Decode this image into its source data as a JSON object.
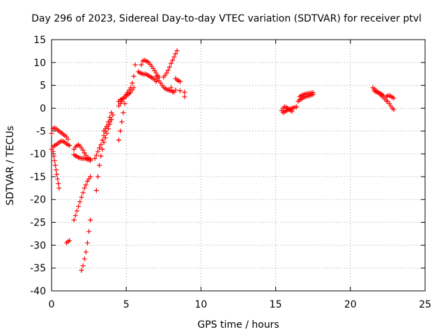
{
  "chart_data": {
    "type": "scatter",
    "title": "Day 296 of 2023, Sidereal Day-to-day VTEC variation (SDTVAR) for receiver ptvl",
    "xlabel": "GPS time / hours",
    "ylabel": "SDTVAR / TECUs",
    "xlim": [
      0,
      25
    ],
    "ylim": [
      -40,
      15
    ],
    "xticks": [
      "0",
      "5",
      "10",
      "15",
      "20",
      "25"
    ],
    "yticks": [
      "15",
      "10",
      "5",
      "0",
      "-5",
      "-10",
      "-15",
      "-20",
      "-25",
      "-30",
      "-35",
      "-40"
    ],
    "grid": true,
    "marker": "+",
    "color": "#ff0000",
    "series": [
      {
        "x": [
          0.0,
          0.1,
          0.2,
          0.3,
          0.4,
          0.5,
          0.6,
          0.7,
          0.8,
          0.9,
          1.0,
          1.1
        ],
        "y": [
          -5.5,
          -4.5,
          -4.3,
          -4.5,
          -4.8,
          -5.0,
          -5.3,
          -5.5,
          -5.8,
          -6.0,
          -6.3,
          -6.8
        ]
      },
      {
        "x": [
          0.0,
          0.1,
          0.15,
          0.2,
          0.25,
          0.3,
          0.35,
          0.4,
          0.45,
          0.5
        ],
        "y": [
          -9.0,
          -9.5,
          -10.5,
          -11.5,
          -12.5,
          -13.5,
          -14.5,
          -15.5,
          -16.5,
          -17.5
        ]
      },
      {
        "x": [
          0.1,
          0.2,
          0.3,
          0.4,
          0.5,
          0.6,
          0.7,
          0.8,
          0.9,
          1.0,
          1.1,
          1.2
        ],
        "y": [
          -8.5,
          -8.2,
          -8.0,
          -7.8,
          -7.5,
          -7.3,
          -7.2,
          -7.3,
          -7.5,
          -7.8,
          -8.0,
          -8.2
        ]
      },
      {
        "x": [
          1.0,
          1.1,
          1.2
        ],
        "y": [
          -29.5,
          -29.2,
          -29.0
        ]
      },
      {
        "x": [
          1.5,
          1.6,
          1.7,
          1.8,
          1.9,
          2.0,
          2.1,
          2.2,
          2.3,
          2.4,
          2.5,
          2.6
        ],
        "y": [
          -9.0,
          -8.5,
          -8.2,
          -8.0,
          -8.3,
          -8.7,
          -9.2,
          -9.8,
          -10.3,
          -10.8,
          -11.0,
          -11.2
        ]
      },
      {
        "x": [
          1.5,
          1.6,
          1.7,
          1.8,
          1.9,
          2.0,
          2.1,
          2.2,
          2.3,
          2.4,
          2.5,
          2.6
        ],
        "y": [
          -10.2,
          -10.4,
          -10.6,
          -10.8,
          -10.9,
          -11.0,
          -11.0,
          -11.0,
          -11.1,
          -11.2,
          -11.3,
          -11.5
        ]
      },
      {
        "x": [
          1.5,
          1.6,
          1.7,
          1.8,
          1.9,
          2.0,
          2.1,
          2.2,
          2.3,
          2.4,
          2.5,
          2.6
        ],
        "y": [
          -24.5,
          -23.5,
          -22.5,
          -21.5,
          -20.5,
          -19.5,
          -18.5,
          -17.5,
          -16.8,
          -16.0,
          -15.5,
          -15.0
        ]
      },
      {
        "x": [
          2.0,
          2.1,
          2.2,
          2.3,
          2.4,
          2.5,
          2.6
        ],
        "y": [
          -35.5,
          -34.5,
          -33.0,
          -31.5,
          -29.5,
          -27.0,
          -24.5
        ]
      },
      {
        "x": [
          2.9,
          3.0,
          3.1,
          3.2,
          3.3,
          3.4,
          3.5,
          3.6,
          3.7,
          3.8,
          3.9,
          4.0
        ],
        "y": [
          -11.0,
          -10.3,
          -9.5,
          -8.7,
          -8.0,
          -7.0,
          -6.0,
          -5.0,
          -4.0,
          -3.0,
          -2.0,
          -1.0
        ]
      },
      {
        "x": [
          3.0,
          3.1,
          3.2,
          3.3,
          3.4,
          3.5,
          3.6,
          3.7,
          3.8,
          3.9,
          4.0,
          4.1
        ],
        "y": [
          -18.0,
          -15.0,
          -12.5,
          -10.5,
          -9.0,
          -7.5,
          -6.5,
          -5.5,
          -4.5,
          -3.5,
          -2.5,
          -1.5
        ]
      },
      {
        "x": [
          3.5,
          3.6,
          3.7,
          3.8,
          3.9,
          4.0
        ],
        "y": [
          -5.0,
          -4.5,
          -4.0,
          -3.5,
          -3.0,
          -2.5
        ]
      },
      {
        "x": [
          4.5,
          4.6,
          4.7,
          4.8,
          4.9,
          5.0
        ],
        "y": [
          -7.0,
          -5.0,
          -3.0,
          -1.0,
          1.0,
          2.5
        ]
      },
      {
        "x": [
          4.5,
          4.6,
          4.7,
          4.8,
          4.9,
          5.0,
          5.1,
          5.2,
          5.3,
          5.4,
          5.5,
          5.6
        ],
        "y": [
          0.5,
          1.0,
          1.5,
          2.0,
          2.5,
          3.0,
          3.5,
          4.0,
          4.5,
          5.5,
          7.0,
          9.5
        ]
      },
      {
        "x": [
          4.5,
          4.6,
          4.7,
          4.8,
          4.9,
          5.0,
          5.1,
          5.2,
          5.3,
          5.4,
          5.5
        ],
        "y": [
          1.5,
          1.8,
          2.0,
          2.2,
          2.5,
          2.8,
          3.0,
          3.2,
          3.5,
          4.0,
          4.5
        ]
      },
      {
        "x": [
          6.0,
          6.1,
          6.2,
          6.3,
          6.4,
          6.5,
          6.6,
          6.7,
          6.8,
          6.9,
          7.0,
          7.1,
          7.2
        ],
        "y": [
          9.5,
          10.3,
          10.5,
          10.4,
          10.2,
          10.0,
          9.6,
          9.2,
          8.7,
          8.2,
          7.7,
          7.2,
          6.8
        ]
      },
      {
        "x": [
          5.8,
          5.9,
          6.0,
          6.1,
          6.2,
          6.3,
          6.4,
          6.5,
          6.6,
          6.7,
          6.8,
          6.9,
          7.0
        ],
        "y": [
          8.0,
          7.8,
          7.6,
          7.5,
          7.4,
          7.5,
          7.3,
          7.1,
          6.9,
          6.7,
          6.5,
          6.2,
          5.8
        ]
      },
      {
        "x": [
          7.0,
          7.1,
          7.2,
          7.3,
          7.4,
          7.5,
          7.6,
          7.7,
          7.8,
          7.9,
          8.0,
          8.1,
          8.2
        ],
        "y": [
          7.0,
          6.5,
          6.0,
          5.5,
          5.0,
          4.6,
          4.3,
          4.1,
          4.0,
          3.9,
          3.8,
          3.6,
          3.5
        ]
      },
      {
        "x": [
          7.5,
          7.6,
          7.7,
          7.8,
          7.9,
          8.0,
          8.1,
          8.2,
          8.3,
          8.4
        ],
        "y": [
          6.8,
          7.2,
          7.7,
          8.3,
          9.0,
          9.8,
          10.5,
          11.2,
          11.9,
          12.6
        ]
      },
      {
        "x": [
          8.3,
          8.4,
          8.5,
          8.6
        ],
        "y": [
          6.5,
          6.2,
          6.0,
          5.8
        ]
      },
      {
        "x": [
          8.0,
          8.3,
          8.6,
          8.9,
          8.9
        ],
        "y": [
          4.5,
          4.0,
          3.8,
          3.5,
          2.5
        ]
      },
      {
        "x": [
          15.4,
          15.5,
          15.6,
          15.7,
          15.8,
          15.9,
          16.0,
          16.1
        ],
        "y": [
          -0.5,
          0.0,
          0.3,
          0.2,
          0.0,
          -0.2,
          -0.5,
          -0.7
        ]
      },
      {
        "x": [
          15.5,
          15.6,
          15.7,
          15.8,
          15.9,
          16.0,
          16.1,
          16.2,
          16.3,
          16.4
        ],
        "y": [
          -1.0,
          -0.8,
          -0.6,
          -0.4,
          -0.3,
          -0.1,
          0.0,
          0.1,
          0.2,
          0.3
        ]
      },
      {
        "x": [
          16.5,
          16.6,
          16.7,
          16.8,
          16.9,
          17.0,
          17.1,
          17.2,
          17.3,
          17.4,
          17.5
        ],
        "y": [
          1.5,
          1.8,
          2.0,
          2.2,
          2.4,
          2.5,
          2.6,
          2.7,
          2.8,
          2.9,
          3.0
        ]
      },
      {
        "x": [
          16.6,
          16.7,
          16.8,
          16.9,
          17.0,
          17.1,
          17.2,
          17.3,
          17.4,
          17.5
        ],
        "y": [
          2.5,
          2.7,
          2.9,
          3.0,
          3.1,
          3.2,
          3.2,
          3.3,
          3.3,
          3.4
        ]
      },
      {
        "x": [
          21.5,
          21.6,
          21.7,
          21.8,
          21.9,
          22.0,
          22.1,
          22.2,
          22.3,
          22.4
        ],
        "y": [
          4.5,
          4.2,
          3.9,
          3.6,
          3.3,
          3.0,
          2.7,
          2.4,
          2.0,
          1.6
        ]
      },
      {
        "x": [
          21.6,
          21.7,
          21.8,
          21.9,
          22.0,
          22.1,
          22.2
        ],
        "y": [
          3.8,
          3.6,
          3.5,
          3.4,
          3.2,
          3.0,
          2.8
        ]
      },
      {
        "x": [
          22.4,
          22.5,
          22.6,
          22.7,
          22.8,
          22.9
        ],
        "y": [
          2.5,
          2.7,
          2.8,
          2.6,
          2.4,
          2.2
        ]
      },
      {
        "x": [
          22.5,
          22.6,
          22.7,
          22.8,
          22.9
        ],
        "y": [
          1.5,
          1.0,
          0.5,
          0.0,
          -0.3
        ]
      }
    ]
  }
}
